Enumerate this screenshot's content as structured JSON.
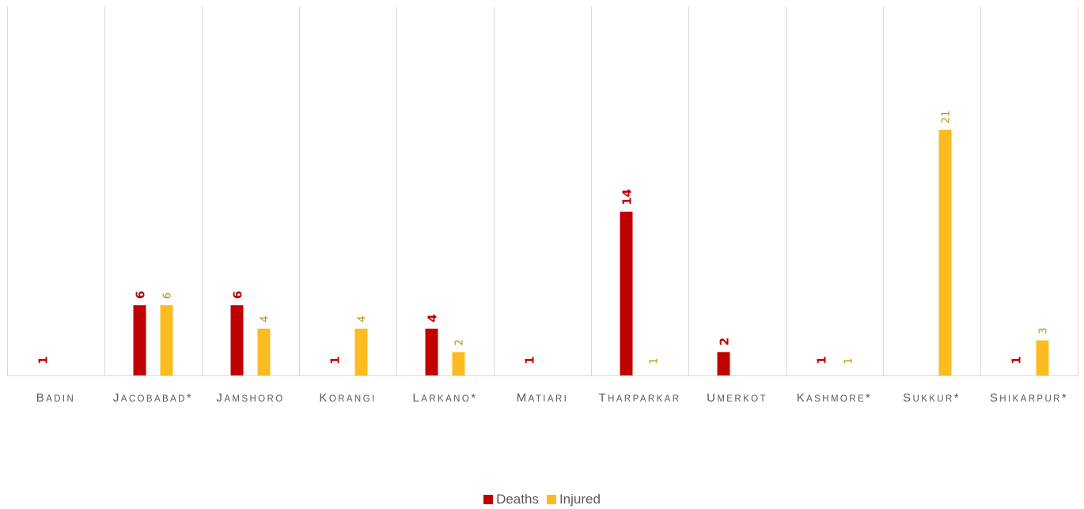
{
  "chart_data": {
    "type": "bar",
    "categories": [
      "Badin",
      "Jacobabad*",
      "Jamshoro",
      "Korangi",
      "Larkano*",
      "Matiari",
      "Tharparkar",
      "Umerkot",
      "Kashmore*",
      "Sukkur*",
      "Shikarpur*"
    ],
    "series": [
      {
        "name": "Deaths",
        "color": "#C00000",
        "values": [
          1,
          6,
          6,
          1,
          4,
          1,
          14,
          2,
          1,
          null,
          1
        ]
      },
      {
        "name": "Injured",
        "color": "#FBBC21",
        "values": [
          null,
          6,
          4,
          4,
          2,
          null,
          1,
          null,
          1,
          21,
          3
        ]
      }
    ],
    "injured_label_color": "#BF9000",
    "ylim": [
      0,
      27
    ],
    "grid": "vertical separators",
    "legend_position": "bottom-center"
  }
}
